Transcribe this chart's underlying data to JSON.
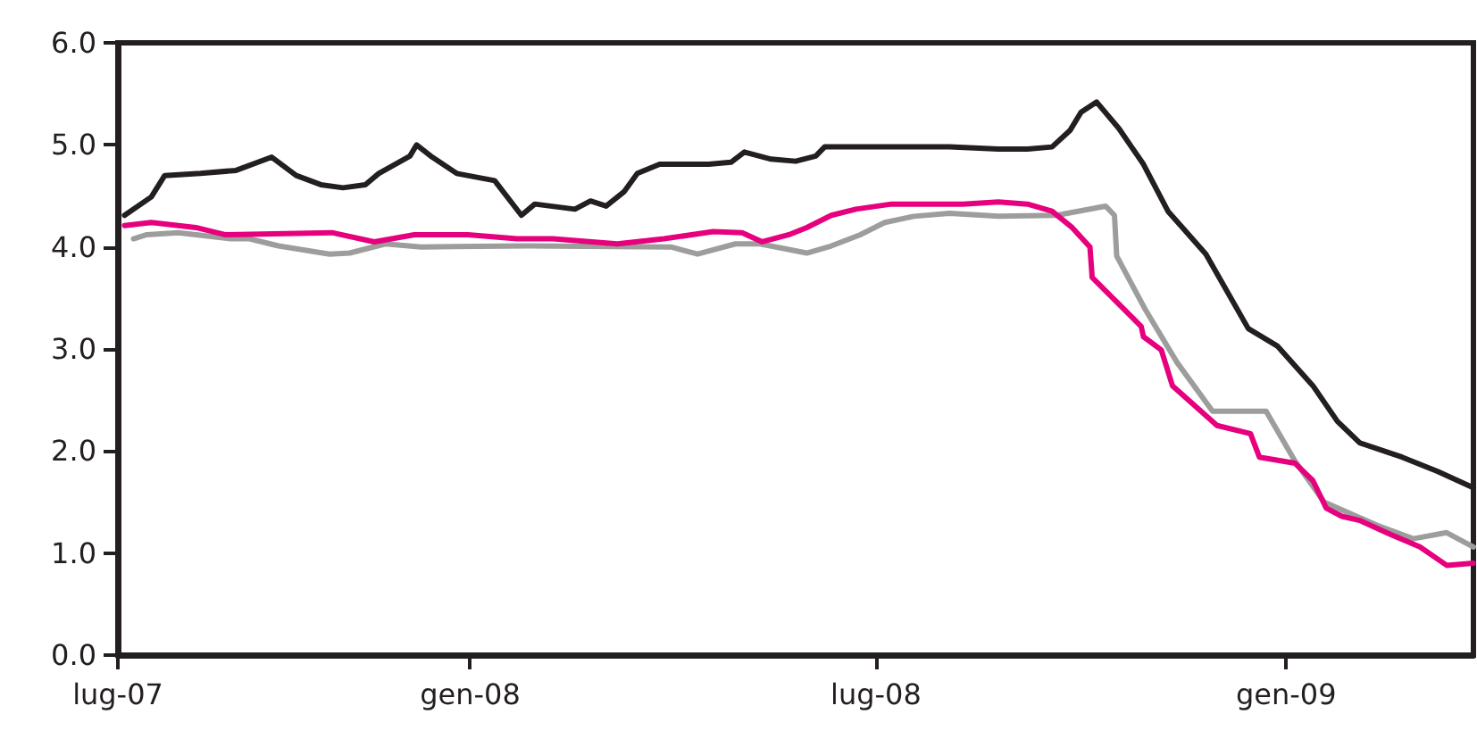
{
  "chart_data": {
    "type": "line",
    "xlim": [
      "2007-07-27",
      "2009-03-26"
    ],
    "xticks": [
      {
        "value": "2007-07-27",
        "label": "lug-07"
      },
      {
        "value": "2008-01-01",
        "label": "gen-08"
      },
      {
        "value": "2008-07-01",
        "label": "lug-08"
      },
      {
        "value": "2009-01-01",
        "label": "gen-09"
      }
    ],
    "ylim": [
      0,
      6
    ],
    "yticks": [
      {
        "value": 0,
        "label": "0.0"
      },
      {
        "value": 1,
        "label": "1.0"
      },
      {
        "value": 2,
        "label": "2.0"
      },
      {
        "value": 3,
        "label": "3.0"
      },
      {
        "value": 4,
        "label": "4.0"
      },
      {
        "value": 5,
        "label": "5.0"
      },
      {
        "value": 6,
        "label": "6.0"
      }
    ],
    "marker": "none",
    "line_style": "solid",
    "series": [
      {
        "color": "#231f20",
        "x": [
          "2007-07-30",
          "2007-08-11",
          "2007-08-17",
          "2007-09-02",
          "2007-09-18",
          "2007-10-04",
          "2007-10-15",
          "2007-10-26",
          "2007-11-05",
          "2007-11-15",
          "2007-11-21",
          "2007-12-05",
          "2007-12-08",
          "2007-12-15",
          "2007-12-26",
          "2008-01-12",
          "2008-01-24",
          "2008-01-30",
          "2008-02-17",
          "2008-02-24",
          "2008-03-02",
          "2008-03-10",
          "2008-03-16",
          "2008-03-26",
          "2008-04-17",
          "2008-04-27",
          "2008-05-03",
          "2008-05-15",
          "2008-05-26",
          "2008-06-04",
          "2008-06-08",
          "2008-08-03",
          "2008-08-25",
          "2008-09-07",
          "2008-09-18",
          "2008-09-26",
          "2008-10-01",
          "2008-10-08",
          "2008-10-18",
          "2008-10-29",
          "2008-11-09",
          "2008-11-26",
          "2008-12-15",
          "2008-12-28",
          "2009-01-13",
          "2009-01-24",
          "2009-02-03",
          "2009-02-22",
          "2009-03-10",
          "2009-03-26"
        ],
        "values": [
          4.31,
          4.49,
          4.7,
          4.72,
          4.75,
          4.88,
          4.7,
          4.61,
          4.58,
          4.61,
          4.72,
          4.89,
          5.0,
          4.88,
          4.72,
          4.65,
          4.31,
          4.42,
          4.37,
          4.45,
          4.4,
          4.54,
          4.72,
          4.81,
          4.81,
          4.83,
          4.93,
          4.86,
          4.84,
          4.89,
          4.98,
          4.98,
          4.96,
          4.96,
          4.98,
          5.14,
          5.32,
          5.42,
          5.16,
          4.81,
          4.35,
          3.93,
          3.2,
          3.03,
          2.64,
          2.29,
          2.08,
          1.94,
          1.8,
          1.64
        ]
      },
      {
        "color": "#9d9d9c",
        "x": [
          "2007-08-03",
          "2007-08-09",
          "2007-08-23",
          "2007-09-16",
          "2007-09-24",
          "2007-10-07",
          "2007-10-30",
          "2007-11-08",
          "2007-11-24",
          "2007-12-10",
          "2008-01-27",
          "2008-03-31",
          "2008-04-12",
          "2008-04-29",
          "2008-05-10",
          "2008-05-31",
          "2008-06-11",
          "2008-06-24",
          "2008-07-05",
          "2008-07-18",
          "2008-08-03",
          "2008-08-25",
          "2008-09-20",
          "2008-10-12",
          "2008-10-16",
          "2008-10-17",
          "2008-10-30",
          "2008-11-13",
          "2008-11-29",
          "2008-12-23",
          "2009-01-05",
          "2009-01-18",
          "2009-02-11",
          "2009-02-27",
          "2009-03-14",
          "2009-03-26"
        ],
        "values": [
          4.08,
          4.12,
          4.14,
          4.08,
          4.08,
          4.01,
          3.93,
          3.94,
          4.03,
          4.0,
          4.01,
          4.0,
          3.93,
          4.03,
          4.03,
          3.94,
          4.01,
          4.12,
          4.24,
          4.3,
          4.33,
          4.3,
          4.31,
          4.4,
          4.31,
          3.91,
          3.38,
          2.87,
          2.39,
          2.39,
          1.9,
          1.5,
          1.27,
          1.14,
          1.2,
          1.06
        ]
      },
      {
        "color": "#e6007e",
        "x": [
          "2007-07-30",
          "2007-08-11",
          "2007-08-31",
          "2007-09-13",
          "2007-10-31",
          "2007-11-19",
          "2007-12-07",
          "2007-12-31",
          "2008-01-22",
          "2008-02-07",
          "2008-03-07",
          "2008-03-28",
          "2008-04-19",
          "2008-05-02",
          "2008-05-11",
          "2008-05-23",
          "2008-05-31",
          "2008-06-11",
          "2008-06-22",
          "2008-07-08",
          "2008-08-09",
          "2008-08-25",
          "2008-09-07",
          "2008-09-18",
          "2008-09-27",
          "2008-10-05",
          "2008-10-06",
          "2008-10-28",
          "2008-10-29",
          "2008-11-06",
          "2008-11-11",
          "2008-12-01",
          "2008-12-16",
          "2008-12-20",
          "2009-01-05",
          "2009-01-13",
          "2009-01-19",
          "2009-01-26",
          "2009-02-03",
          "2009-02-17",
          "2009-03-02",
          "2009-03-14",
          "2009-03-26"
        ],
        "values": [
          4.21,
          4.24,
          4.19,
          4.12,
          4.14,
          4.05,
          4.12,
          4.12,
          4.08,
          4.08,
          4.03,
          4.08,
          4.15,
          4.14,
          4.05,
          4.12,
          4.19,
          4.31,
          4.37,
          4.42,
          4.42,
          4.44,
          4.42,
          4.35,
          4.19,
          4.0,
          3.7,
          3.22,
          3.12,
          2.99,
          2.64,
          2.25,
          2.17,
          1.94,
          1.88,
          1.71,
          1.44,
          1.36,
          1.32,
          1.18,
          1.06,
          0.88,
          0.9
        ]
      }
    ]
  }
}
